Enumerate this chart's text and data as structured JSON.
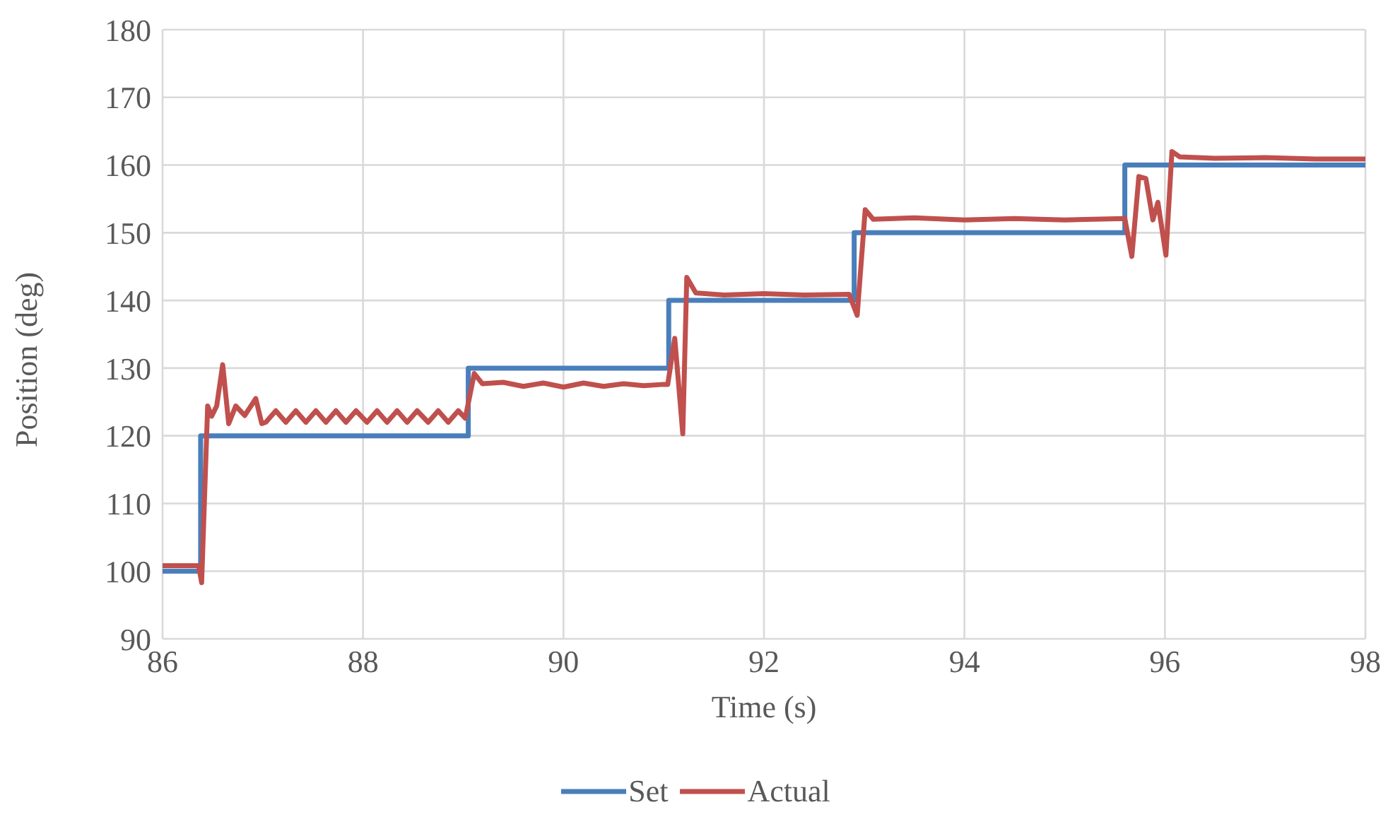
{
  "chart_data": {
    "type": "line",
    "xlabel": "Time (s)",
    "ylabel": "Position (deg)",
    "xlim": [
      86,
      98
    ],
    "xticks": [
      86,
      88,
      90,
      92,
      94,
      96,
      98
    ],
    "ylim": [
      90,
      180
    ],
    "yticks": [
      90,
      100,
      110,
      120,
      130,
      140,
      150,
      160,
      170,
      180
    ],
    "grid": true,
    "legend": "bottom",
    "marker": "none",
    "line_style": "solid",
    "series": [
      {
        "name": "Set",
        "type": "step",
        "color": "#4a7ebb",
        "x": [
          86,
          86.38,
          89.05,
          91.05,
          92.9,
          95.6,
          98
        ],
        "values": [
          100,
          120,
          130,
          140,
          150,
          160,
          160
        ]
      },
      {
        "name": "Actual",
        "type": "line",
        "color": "#c0504d",
        "x": [
          86,
          86.36,
          86.39,
          86.45,
          86.49,
          86.54,
          86.6,
          86.66,
          86.73,
          86.82,
          86.93,
          86.99,
          87.03,
          87.13,
          87.23,
          87.33,
          87.43,
          87.53,
          87.63,
          87.73,
          87.83,
          87.93,
          88.04,
          88.14,
          88.24,
          88.34,
          88.44,
          88.54,
          88.65,
          88.75,
          88.85,
          88.95,
          89.02,
          89.11,
          89.19,
          89.4,
          89.6,
          89.8,
          90.0,
          90.2,
          90.4,
          90.6,
          90.8,
          91.0,
          91.04,
          91.11,
          91.19,
          91.23,
          91.32,
          91.6,
          92.0,
          92.4,
          92.85,
          92.93,
          93.01,
          93.09,
          93.5,
          94,
          94.5,
          95,
          95.6,
          95.67,
          95.74,
          95.81,
          95.88,
          95.93,
          96.01,
          96.07,
          96.15,
          96.5,
          97,
          97.5,
          98
        ],
        "values": [
          100.8,
          100.8,
          98.3,
          124.4,
          122.9,
          124.4,
          130.5,
          121.8,
          124.4,
          123,
          125.5,
          121.8,
          122,
          123.7,
          122,
          123.7,
          122,
          123.7,
          122,
          123.7,
          122,
          123.7,
          122,
          123.7,
          122,
          123.7,
          122,
          123.7,
          122,
          123.7,
          122,
          123.7,
          122.6,
          129.2,
          127.7,
          127.9,
          127.3,
          127.8,
          127.2,
          127.8,
          127.3,
          127.7,
          127.4,
          127.6,
          127.6,
          134.4,
          120.3,
          143.4,
          141.1,
          140.8,
          141,
          140.8,
          140.9,
          137.8,
          153.4,
          152,
          152.2,
          151.9,
          152.1,
          151.9,
          152.1,
          146.5,
          158.3,
          158,
          151.9,
          154.5,
          146.7,
          162,
          161.2,
          161,
          161.1,
          160.9,
          160.9
        ]
      }
    ]
  }
}
